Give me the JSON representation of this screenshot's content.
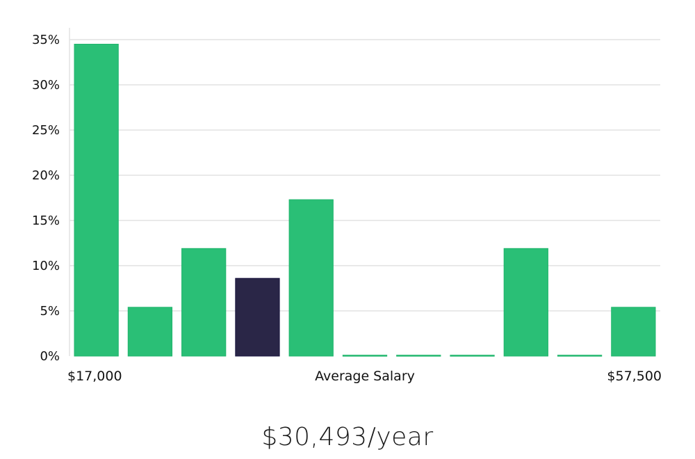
{
  "chart_data": {
    "type": "bar",
    "categories": [
      "1",
      "2",
      "3",
      "4",
      "5",
      "6",
      "7",
      "8",
      "9",
      "10",
      "11"
    ],
    "values": [
      34.5,
      5.4,
      11.9,
      8.6,
      17.3,
      0.1,
      0.1,
      0.1,
      11.9,
      0.1,
      5.4
    ],
    "highlight_index": 3,
    "ylim": [
      0,
      35
    ],
    "yticks": [
      "0%",
      "5%",
      "10%",
      "15%",
      "20%",
      "25%",
      "30%",
      "35%"
    ],
    "ytick_values": [
      0,
      5,
      10,
      15,
      20,
      25,
      30,
      35
    ],
    "x_start_label": "$17,000",
    "x_center_label": "Average Salary",
    "x_end_label": "$57,500",
    "grid": true,
    "colors": {
      "bar": "#2abf76",
      "highlight": "#2a2647",
      "grid": "#e2e2e2"
    }
  },
  "salary_text": "$30,493/year"
}
